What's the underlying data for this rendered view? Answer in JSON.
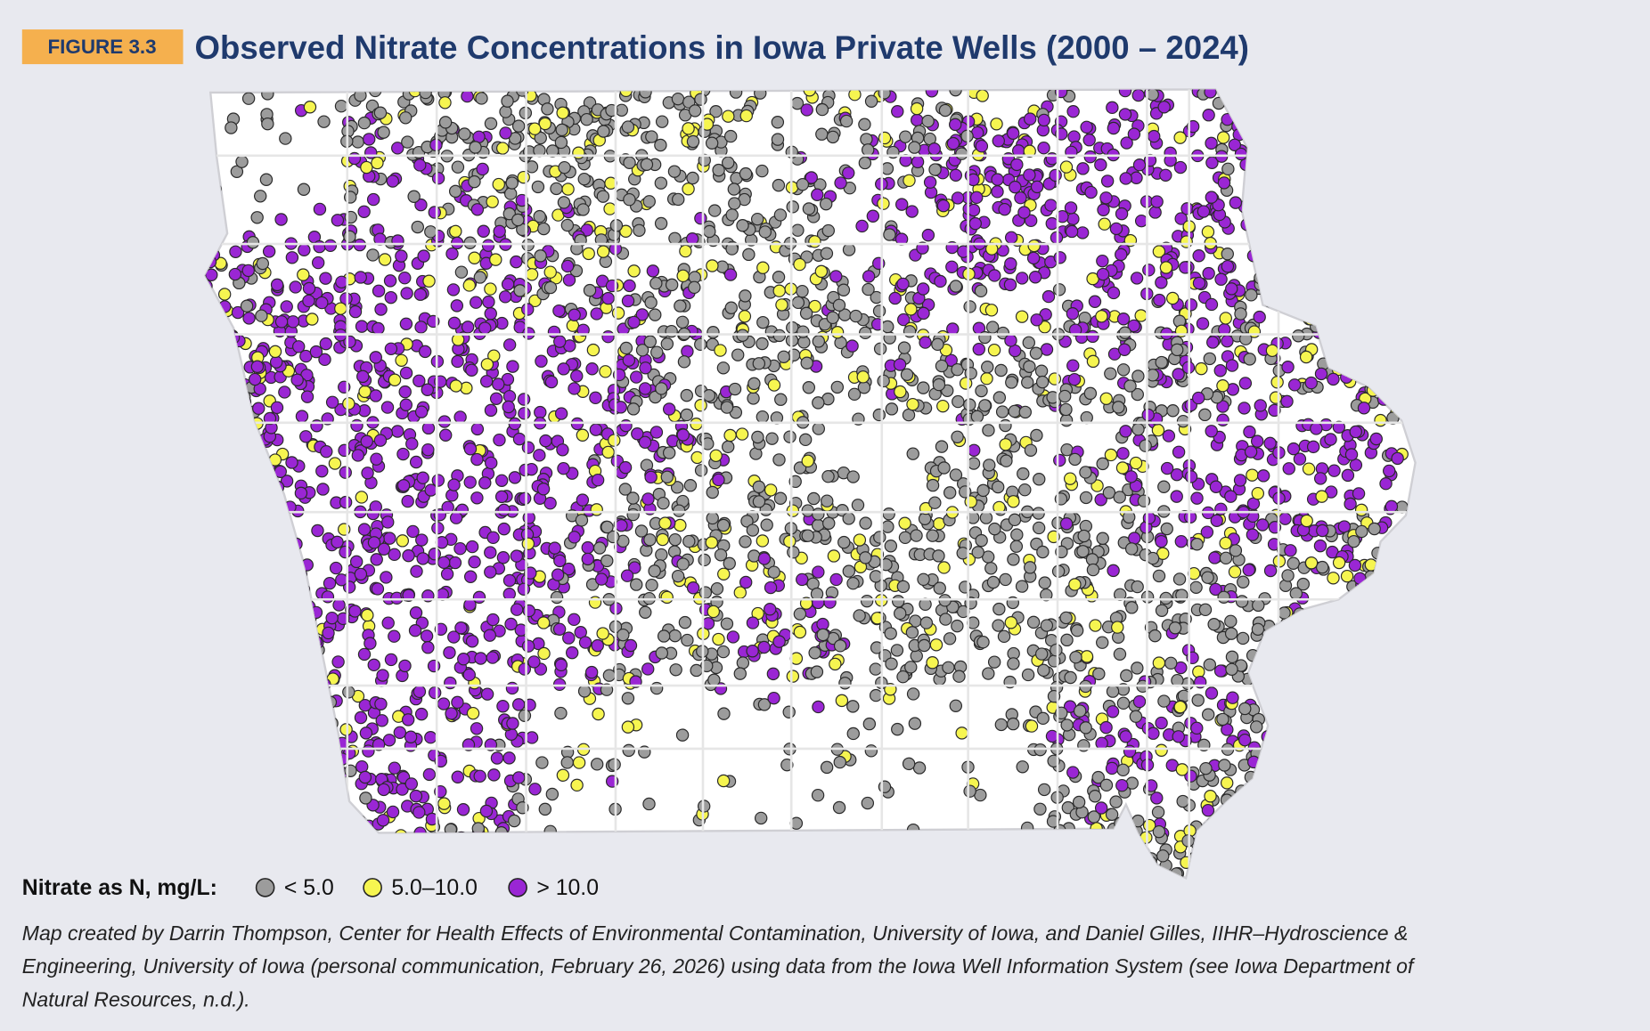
{
  "figure_label": "FIGURE 3.3",
  "title": "Observed Nitrate Concentrations in Iowa Private Wells (2000 – 2024)",
  "legend": {
    "title": "Nitrate as N, mg/L:",
    "items": [
      {
        "label": "< 5.0",
        "color": "#9c9c9c"
      },
      {
        "label": "5.0–10.0",
        "color": "#f6f550"
      },
      {
        "label": "> 10.0",
        "color": "#9a26d4"
      }
    ]
  },
  "caption": [
    "Map created by Darrin Thompson, Center for Health Effects of Environmental Contamination, University of Iowa, and Daniel Gilles, IIHR–Hydroscience &",
    "Engineering, University of Iowa (personal communication, February 26, 2026) using data from the Iowa Well Information System (see Iowa Department of",
    "Natural Resources, n.d.)."
  ]
}
